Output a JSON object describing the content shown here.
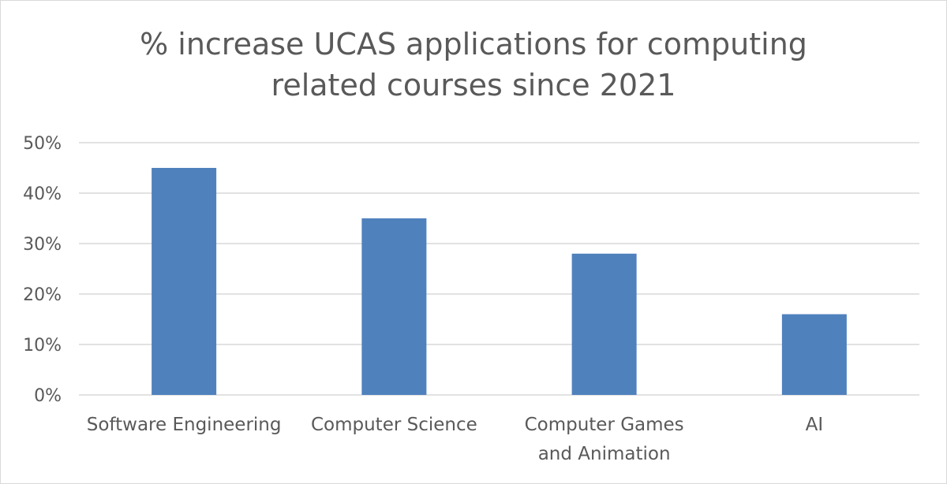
{
  "chart_data": {
    "type": "bar",
    "title_lines": [
      "% increase UCAS applications for computing",
      "related courses since 2021"
    ],
    "categories": [
      [
        "Software Engineering"
      ],
      [
        "Computer Science"
      ],
      [
        "Computer Games",
        "and Animation"
      ],
      [
        "AI"
      ]
    ],
    "values": [
      45,
      35,
      28,
      16
    ],
    "y_ticks": [
      "0%",
      "10%",
      "20%",
      "30%",
      "40%",
      "50%"
    ],
    "ylim": [
      0,
      50
    ],
    "ytick_step": 10,
    "xlabel": "",
    "ylabel": "",
    "grid": true,
    "legend": "none",
    "bar_color": "#4f81bd",
    "grid_color": "#d9d9d9",
    "text_color": "#595959"
  }
}
